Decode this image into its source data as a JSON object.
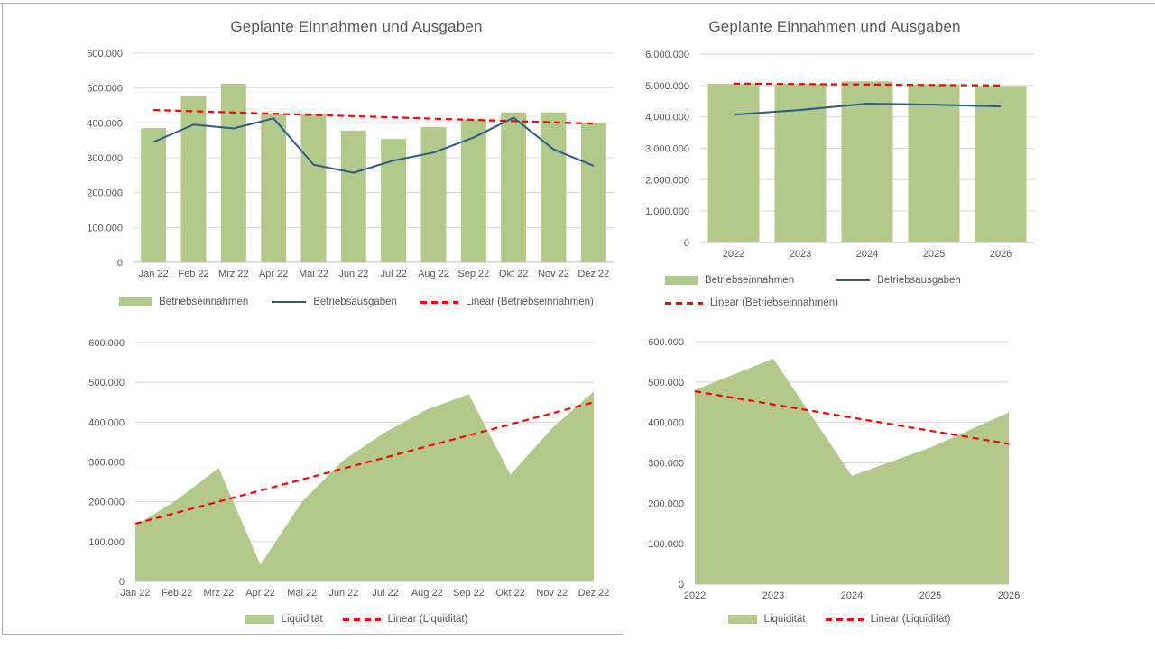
{
  "page": {
    "background": "#ffffff",
    "border_color": "#ababab"
  },
  "colors": {
    "green": "#b3c98c",
    "blue": "#2e5a87",
    "red": "#ff0000",
    "gridline": "#d9d9d9",
    "axisline": "#bfbfbf",
    "text": "#595959"
  },
  "chart_data": [
    {
      "type": "bar+line",
      "title": "Geplante Einnahmen und Ausgaben",
      "categories": [
        "Jan 22",
        "Feb 22",
        "Mrz 22",
        "Apr 22",
        "Mai 22",
        "Jun 22",
        "Jul 22",
        "Aug 22",
        "Sep 22",
        "Okt 22",
        "Nov 22",
        "Dez 22"
      ],
      "ylim": [
        0,
        600000
      ],
      "ytick_step": 100000,
      "ytick_labels": [
        "0",
        "100.000",
        "200.000",
        "300.000",
        "400.000",
        "500.000",
        "600.000"
      ],
      "grid": true,
      "legend_position": "bottom",
      "bar_series": {
        "name": "Betriebseinnahmen",
        "values": [
          385000,
          478000,
          512000,
          424000,
          425000,
          378000,
          354000,
          388000,
          410000,
          430000,
          430000,
          400000
        ]
      },
      "line_series": {
        "name": "Betriebsausgaben",
        "values": [
          345000,
          395000,
          384000,
          413000,
          280000,
          257000,
          292000,
          315000,
          358000,
          415000,
          324000,
          277000
        ]
      },
      "trend": {
        "name": "Linear (Betriebseinnahmen)",
        "start": 437000,
        "end": 398000
      }
    },
    {
      "type": "bar+line",
      "title": "Geplante Einnahmen und Ausgaben",
      "categories": [
        "2022",
        "2023",
        "2024",
        "2025",
        "2026"
      ],
      "ylim": [
        0,
        6000000
      ],
      "ytick_step": 1000000,
      "ytick_labels": [
        "0",
        "1.000.000",
        "2.000.000",
        "3.000.000",
        "4.000.000",
        "5.000.000",
        "6.000.000"
      ],
      "grid": true,
      "legend_position": "bottom",
      "bar_series": {
        "name": "Betriebseinnahmen",
        "values": [
          5050000,
          5050000,
          5130000,
          5040000,
          4980000
        ]
      },
      "line_series": {
        "name": "Betriebsausgaben",
        "values": [
          4070000,
          4220000,
          4420000,
          4390000,
          4330000
        ]
      },
      "trend": {
        "name": "Linear (Betriebseinnahmen)",
        "start": 5060000,
        "end": 5000000
      }
    },
    {
      "type": "area",
      "title": "",
      "categories": [
        "Jan 22",
        "Feb 22",
        "Mrz 22",
        "Apr 22",
        "Mai 22",
        "Jun 22",
        "Jul 22",
        "Aug 22",
        "Sep 22",
        "Okt 22",
        "Nov 22",
        "Dez 22"
      ],
      "ylim": [
        0,
        600000
      ],
      "ytick_step": 100000,
      "ytick_labels": [
        "0",
        "100.000",
        "200.000",
        "300.000",
        "400.000",
        "500.000",
        "600.000"
      ],
      "grid": true,
      "legend_position": "bottom",
      "area_series": {
        "name": "Liquidität",
        "values": [
          140000,
          205000,
          285000,
          42000,
          200000,
          305000,
          375000,
          432000,
          470000,
          268000,
          385000,
          477000
        ]
      },
      "trend": {
        "name": "Linear (Liquidität)",
        "start": 145000,
        "end": 450000
      }
    },
    {
      "type": "area",
      "title": "",
      "categories": [
        "2022",
        "2023",
        "2024",
        "2025",
        "2026"
      ],
      "ylim": [
        0,
        600000
      ],
      "ytick_step": 100000,
      "ytick_labels": [
        "0",
        "100.000",
        "200.000",
        "300.000",
        "400.000",
        "500.000",
        "600.000"
      ],
      "grid": true,
      "legend_position": "bottom",
      "area_series": {
        "name": "Liquidität",
        "values": [
          480000,
          558000,
          268000,
          338000,
          425000
        ]
      },
      "trend": {
        "name": "Linear (Liquidität)",
        "start": 477000,
        "end": 347000
      }
    }
  ]
}
